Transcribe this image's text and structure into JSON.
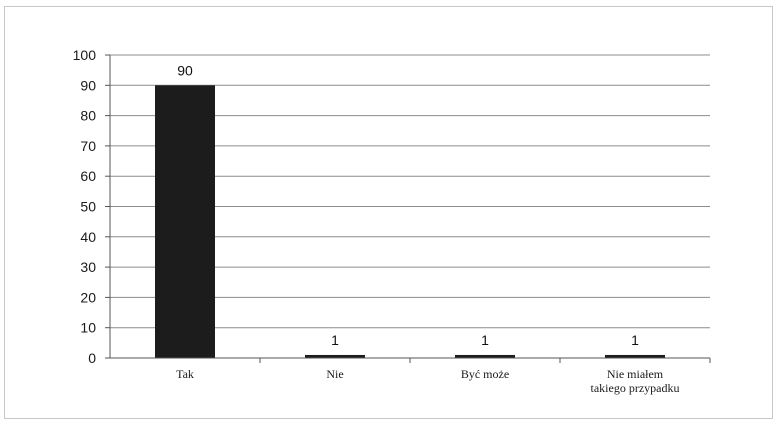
{
  "chart_data": {
    "type": "bar",
    "categories": [
      "Tak",
      "Nie",
      "Być może",
      "Nie miałem takiego przypadku"
    ],
    "category_lines": [
      [
        "Tak"
      ],
      [
        "Nie"
      ],
      [
        "Być może"
      ],
      [
        "Nie miałem",
        "takiego przypadku"
      ]
    ],
    "values": [
      90,
      1,
      1,
      1
    ],
    "data_labels": [
      "90",
      "1",
      "1",
      "1"
    ],
    "ylim": [
      0,
      100
    ],
    "yticks": [
      0,
      10,
      20,
      30,
      40,
      50,
      60,
      70,
      80,
      90,
      100
    ],
    "grid": true,
    "legend": "none",
    "bar_color": "#1c1c1c",
    "grid_color": "#8c8c8c"
  }
}
